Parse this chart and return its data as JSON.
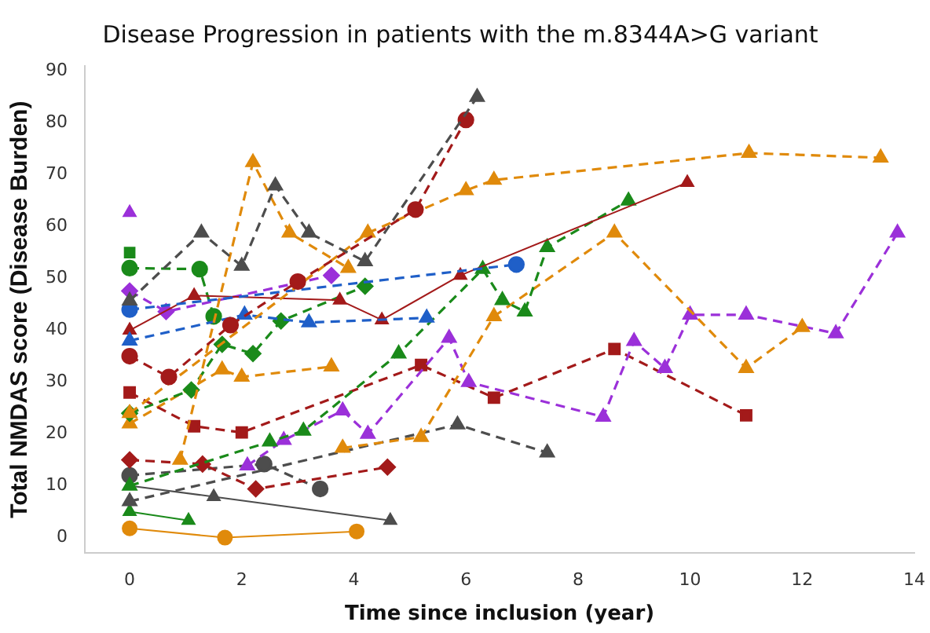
{
  "chart_data": {
    "type": "line",
    "title": "Disease Progression in patients with the m.8344A>G variant",
    "xlabel": "Time since inclusion (year)",
    "ylabel": "Total NMDAS score (Disease Burden)",
    "xlim": [
      -0.8,
      14
    ],
    "ylim": [
      -3,
      91
    ],
    "xticks": [
      0,
      2,
      4,
      6,
      8,
      10,
      12,
      14
    ],
    "yticks": [
      0,
      10,
      20,
      30,
      40,
      50,
      60,
      70,
      80,
      90
    ],
    "grid": false,
    "legend": false,
    "series": [
      {
        "color": "#4d4d4d",
        "marker": "triangle",
        "line_style": "dashed",
        "x": [
          0,
          1.28,
          2.0,
          2.6,
          3.2,
          4.2,
          6.2
        ],
        "values": [
          45.7,
          58.8,
          52.4,
          67.9,
          58.8,
          53.3,
          85
        ]
      },
      {
        "color": "#a31a1a",
        "marker": "circle",
        "line_style": "dashed",
        "x": [
          0,
          0.7,
          1.8,
          3.0,
          5.1,
          6.0
        ],
        "values": [
          35,
          31,
          41,
          49.4,
          63.3,
          80.6
        ]
      },
      {
        "color": "#e08a0b",
        "marker": "triangle",
        "line_style": "dashed",
        "x": [
          0,
          4.25,
          6.0,
          6.5,
          11.05,
          13.4
        ],
        "values": [
          24,
          58.8,
          67,
          69,
          74.2,
          73.3
        ]
      },
      {
        "color": "#e08a0b",
        "marker": "triangle",
        "line_style": "dashed",
        "x": [
          0.9,
          2.2,
          2.85,
          3.9
        ],
        "values": [
          15,
          72.4,
          58.8,
          52
        ]
      },
      {
        "color": "#1f5fc8",
        "marker": "circle",
        "line_style": "dashed",
        "x": [
          0,
          6.9
        ],
        "values": [
          44,
          52.7
        ]
      },
      {
        "color": "#1f5fc8",
        "marker": "triangle",
        "line_style": "dashed",
        "x": [
          0,
          2.05,
          3.2,
          5.3
        ],
        "values": [
          38,
          43,
          41.5,
          42.4
        ]
      },
      {
        "color": "#a31a1a",
        "marker": "triangle",
        "line_style": "solid",
        "x": [
          0,
          1.15,
          3.75,
          4.5,
          5.9,
          9.95
        ],
        "values": [
          40,
          46.7,
          45.8,
          42,
          50.6,
          68.5
        ]
      },
      {
        "color": "#9b30d9",
        "marker": "diamond",
        "line_style": "dashed",
        "x": [
          0,
          0.65,
          3.6
        ],
        "values": [
          47.6,
          43.6,
          50.6
        ]
      },
      {
        "color": "#1a8a1a",
        "marker": "diamond",
        "line_style": "dashed",
        "x": [
          0,
          1.1,
          1.65,
          2.2,
          2.7,
          4.2
        ],
        "values": [
          24,
          28.5,
          37.3,
          35.5,
          41.8,
          48.5
        ]
      },
      {
        "color": "#1a8a1a",
        "marker": "triangle",
        "line_style": "dashed",
        "x": [
          0,
          2.5,
          3.1,
          4.8,
          6.3,
          6.65,
          7.05,
          7.45,
          8.9
        ],
        "values": [
          10,
          18.5,
          20.6,
          35.5,
          51.8,
          45.8,
          43.6,
          56,
          65
        ]
      },
      {
        "color": "#e08a0b",
        "marker": "triangle",
        "line_style": "dashed",
        "x": [
          3.8,
          5.2,
          6.5,
          8.65,
          11.0,
          12.0
        ],
        "values": [
          17.3,
          19.4,
          42.7,
          58.8,
          32.7,
          40.6
        ]
      },
      {
        "color": "#9b30d9",
        "marker": "triangle",
        "line_style": "dashed",
        "x": [
          2.1,
          2.75,
          3.8,
          4.25,
          5.7,
          6.05,
          8.45,
          9.0,
          9.55,
          10.0,
          11.0,
          12.6,
          13.7
        ],
        "values": [
          13.9,
          18.8,
          24.5,
          20,
          38.5,
          30,
          23.3,
          37.9,
          32.7,
          43,
          43,
          39.4,
          58.8
        ]
      },
      {
        "color": "#a31a1a",
        "marker": "square",
        "line_style": "dashed",
        "x": [
          0,
          1.15,
          2.0,
          5.2,
          6.5,
          8.65,
          11.0
        ],
        "values": [
          28,
          21.5,
          20.3,
          33.3,
          27,
          36.4,
          23.6
        ]
      },
      {
        "color": "#4d4d4d",
        "marker": "triangle",
        "line_style": "dashed",
        "x": [
          0,
          5.85,
          7.45
        ],
        "values": [
          7,
          21.8,
          16.4
        ]
      },
      {
        "color": "#4d4d4d",
        "marker": "triangle",
        "line_style": "solid",
        "x": [
          0,
          1.5,
          4.65
        ],
        "values": [
          10,
          7.9,
          3.3
        ]
      },
      {
        "color": "#e08a0b",
        "marker": "circle",
        "line_style": "solid",
        "x": [
          0,
          1.7,
          4.05
        ],
        "values": [
          1.8,
          0,
          1.2
        ]
      },
      {
        "color": "#a31a1a",
        "marker": "diamond",
        "line_style": "dashed",
        "x": [
          0,
          1.3,
          2.25,
          4.6
        ],
        "values": [
          15,
          14.2,
          9.4,
          13.6
        ]
      },
      {
        "color": "#4d4d4d",
        "marker": "circle",
        "line_style": "dashed",
        "x": [
          0,
          2.4,
          3.4
        ],
        "values": [
          12,
          14.2,
          9.4
        ]
      },
      {
        "color": "#1a8a1a",
        "marker": "triangle",
        "line_style": "solid",
        "x": [
          0,
          1.05
        ],
        "values": [
          5,
          3.3
        ]
      },
      {
        "color": "#9b30d9",
        "marker": "triangle",
        "line_style": "solid",
        "x": [
          0
        ],
        "values": [
          62.7
        ]
      },
      {
        "color": "#1a8a1a",
        "marker": "square",
        "line_style": "solid",
        "x": [
          0
        ],
        "values": [
          55
        ]
      },
      {
        "color": "#e08a0b",
        "marker": "triangle",
        "line_style": "dashed",
        "x": [
          0,
          1.65,
          2.0,
          3.6
        ],
        "values": [
          22,
          32.4,
          31,
          33
        ]
      },
      {
        "color": "#1a8a1a",
        "marker": "circle",
        "line_style": "dashed",
        "x": [
          0,
          1.25,
          1.5
        ],
        "values": [
          52,
          51.8,
          42.7
        ]
      }
    ]
  }
}
